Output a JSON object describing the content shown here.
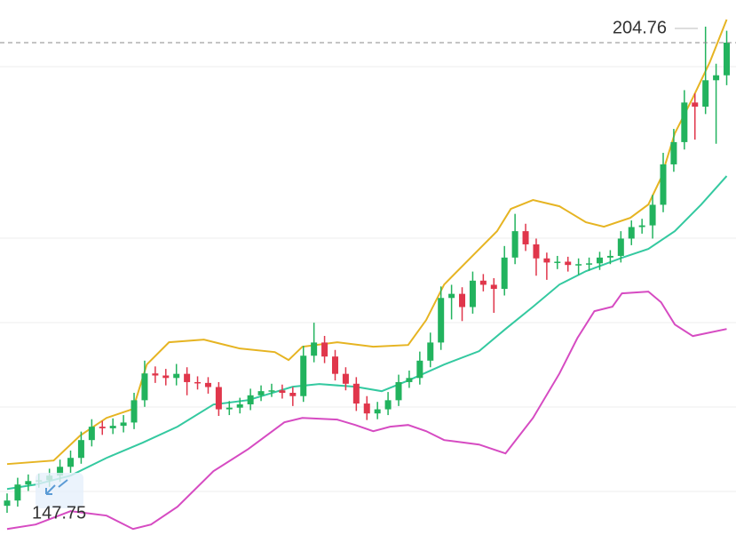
{
  "chart_data": {
    "type": "candlestick",
    "xlim": [
      -0.67,
      68.88
    ],
    "ylim": [
      145.06,
      209.93
    ],
    "gridlines": [
      201.85,
      181.05,
      170.82,
      160.58,
      150.34
    ],
    "grid": true,
    "up_color": "#22b35e",
    "down_color": "#e0364b",
    "open": [
      148.6,
      149.24,
      151.18,
      151.6,
      151.7,
      152.26,
      153.33,
      154.41,
      156.57,
      158.19,
      158.0,
      158.3,
      158.7,
      161.4,
      164.65,
      164.4,
      164.1,
      164.6,
      163.6,
      163.5,
      163.0,
      160.3,
      160.5,
      160.9,
      162.0,
      162.5,
      162.6,
      162.3,
      161.9,
      166.8,
      168.4,
      166.7,
      164.6,
      163.4,
      161.0,
      159.8,
      160.3,
      161.4,
      163.6,
      164.1,
      166.2,
      168.4,
      173.8,
      174.3,
      172.7,
      175.9,
      175.4,
      174.9,
      178.7,
      181.9,
      180.3,
      178.6,
      178.1,
      178.2,
      177.8,
      177.9,
      178.0,
      178.7,
      178.9,
      181.0,
      182.4,
      182.6,
      185.1,
      190.0,
      192.7,
      197.5,
      197.0,
      200.2,
      200.8
    ],
    "high": [
      150.1,
      152.0,
      152.4,
      152.5,
      153.1,
      154.2,
      155.3,
      157.6,
      159.1,
      158.9,
      159.2,
      159.6,
      162.3,
      166.2,
      165.5,
      165.2,
      165.8,
      165.4,
      164.3,
      164.2,
      163.6,
      161.3,
      161.7,
      162.8,
      163.2,
      163.4,
      163.3,
      163.0,
      168.0,
      170.8,
      169.2,
      167.5,
      165.4,
      164.2,
      161.9,
      161.2,
      162.4,
      164.5,
      165.0,
      167.3,
      169.6,
      175.2,
      175.4,
      175.1,
      177.0,
      176.7,
      176.2,
      180.1,
      184.0,
      182.8,
      181.0,
      179.3,
      178.9,
      178.8,
      178.6,
      178.7,
      179.4,
      179.6,
      181.9,
      183.2,
      183.4,
      186.3,
      191.4,
      194.3,
      199.0,
      198.6,
      206.7,
      202.2,
      206.2
    ],
    "low": [
      147.75,
      148.5,
      150.4,
      150.8,
      150.9,
      151.5,
      152.6,
      153.7,
      155.8,
      157.2,
      157.3,
      157.5,
      157.9,
      160.6,
      163.5,
      163.2,
      163.2,
      162.0,
      162.7,
      162.2,
      159.5,
      159.6,
      159.8,
      160.2,
      161.3,
      161.8,
      161.6,
      160.7,
      161.2,
      166.0,
      165.9,
      163.8,
      162.6,
      160.1,
      159.0,
      159.1,
      159.6,
      160.7,
      162.9,
      163.3,
      165.4,
      167.5,
      171.2,
      171.0,
      171.9,
      174.6,
      172.0,
      174.1,
      177.9,
      179.5,
      176.5,
      176.0,
      177.3,
      177.0,
      176.6,
      177.1,
      177.2,
      177.9,
      178.1,
      180.2,
      181.6,
      181.0,
      184.2,
      189.1,
      191.8,
      193.0,
      196.1,
      192.5,
      199.6
    ],
    "close": [
      149.24,
      151.18,
      151.6,
      151.7,
      152.26,
      153.33,
      154.41,
      156.57,
      158.19,
      158.0,
      158.3,
      158.7,
      161.4,
      164.65,
      164.4,
      164.1,
      164.6,
      163.6,
      163.5,
      163.0,
      160.3,
      160.5,
      160.9,
      162.0,
      162.5,
      162.6,
      162.3,
      161.9,
      166.8,
      168.4,
      166.7,
      164.6,
      163.4,
      161.0,
      159.8,
      160.3,
      161.4,
      163.6,
      164.1,
      166.2,
      168.4,
      173.8,
      174.3,
      172.7,
      175.9,
      175.4,
      174.9,
      178.7,
      181.9,
      180.3,
      178.6,
      178.1,
      178.2,
      177.8,
      177.9,
      178.0,
      178.7,
      178.9,
      181.0,
      182.4,
      182.6,
      185.1,
      190.0,
      192.7,
      197.5,
      197.0,
      200.2,
      200.8,
      204.76
    ],
    "bands": [
      {
        "color": "#e6b422",
        "x": [
          0,
          4.4,
          6.9,
          9.4,
          11.9,
          13.2,
          15.3,
          18.6,
          22,
          25.3,
          26.6,
          27.9,
          31.2,
          34.6,
          37.9,
          39.6,
          41.3,
          43.8,
          46.3,
          47.6,
          49.7,
          52.2,
          54.7,
          56.4,
          58.9,
          60.6,
          61.8,
          63.1,
          64.8,
          66.4,
          68
        ],
        "values": [
          153.66,
          154.09,
          157.11,
          159.26,
          160.34,
          165.73,
          168.43,
          168.75,
          167.67,
          167.24,
          166.27,
          167.89,
          168.43,
          167.89,
          168.1,
          171.12,
          175.43,
          178.67,
          181.9,
          184.6,
          185.68,
          184.92,
          182.98,
          182.44,
          183.52,
          185.14,
          188.37,
          193.76,
          198.07,
          202.38,
          207.56
        ]
      },
      {
        "color": "#34c9a0",
        "x": [
          0,
          2.7,
          6,
          9.4,
          12.8,
          16.1,
          19.5,
          22.8,
          27,
          29.5,
          32.9,
          35.4,
          37.9,
          41.3,
          44.6,
          47.1,
          49.7,
          52.2,
          54.7,
          58.1,
          60.6,
          63.1,
          65.6,
          68
        ],
        "values": [
          150.64,
          151.18,
          152.26,
          154.41,
          156.25,
          158.19,
          160.88,
          161.42,
          163.04,
          163.36,
          163.04,
          162.5,
          163.79,
          165.73,
          167.35,
          170.04,
          172.74,
          175.43,
          177.05,
          178.67,
          179.75,
          181.9,
          185.14,
          188.59
        ]
      },
      {
        "color": "#d64bc2",
        "x": [
          0,
          2.7,
          6,
          9.4,
          11.9,
          13.6,
          16.1,
          19.5,
          22.8,
          26.2,
          27.9,
          31.2,
          32.9,
          34.6,
          36.2,
          37.9,
          39.6,
          41.3,
          44.6,
          47.1,
          49.7,
          52.2,
          53.9,
          55.5,
          57.2,
          58.1,
          60.6,
          61.8,
          63.1,
          64.8,
          68
        ],
        "values": [
          145.79,
          146.33,
          147.95,
          147.41,
          145.79,
          146.33,
          148.49,
          152.8,
          155.49,
          158.73,
          159.26,
          159.05,
          158.4,
          157.65,
          158.19,
          158.4,
          157.65,
          156.57,
          156.03,
          154.95,
          159.26,
          164.65,
          168.96,
          172.2,
          172.74,
          174.36,
          174.57,
          173.28,
          170.58,
          169.18,
          170.04
        ]
      }
    ]
  }
}
